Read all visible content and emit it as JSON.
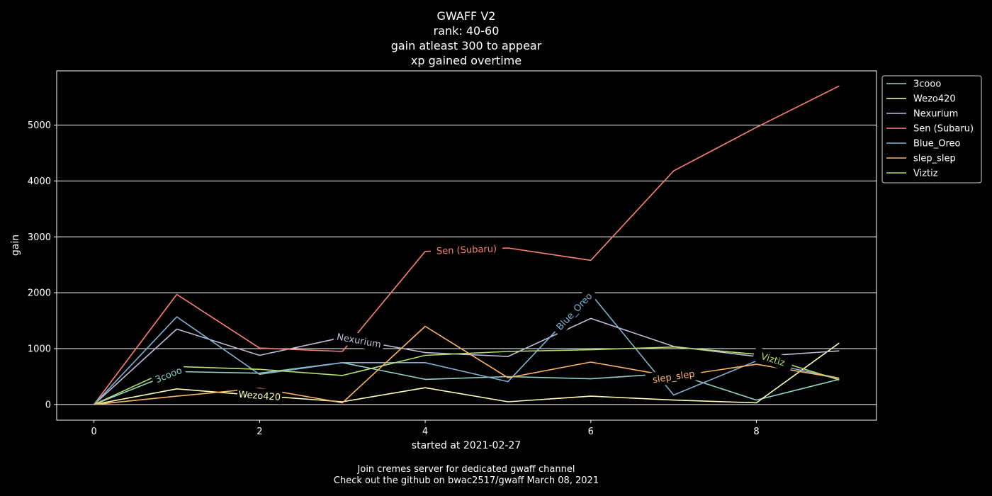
{
  "chart_data": {
    "type": "line",
    "title_lines": [
      "GWAFF V2",
      "rank: 40-60",
      "gain atleast 300 to appear",
      "xp gained overtime"
    ],
    "xlabel": "started at 2021-02-27",
    "ylabel": "gain",
    "footer_lines": [
      "Join cremes server for dedicated gwaff channel",
      "Check out the github on bwac2517/gwaff March 08, 2021"
    ],
    "xlim": [
      -0.45,
      9.45
    ],
    "ylim": [
      -280,
      5970
    ],
    "xticks": [
      0,
      2,
      4,
      6,
      8
    ],
    "xtick_labels": [
      "0",
      "2",
      "4",
      "6",
      "8"
    ],
    "yticks": [
      0,
      1000,
      2000,
      3000,
      4000,
      5000
    ],
    "ytick_labels": [
      "0",
      "1000",
      "2000",
      "3000",
      "4000",
      "5000"
    ],
    "grid": "horizontal",
    "legend_position": "outside-upper-right",
    "x": [
      0,
      1,
      2,
      3,
      4,
      5,
      6,
      7,
      8,
      9
    ],
    "series": [
      {
        "name": "3cooo",
        "color": "#8dd3c7",
        "values": [
          0,
          590,
          560,
          750,
          450,
          500,
          460,
          560,
          80,
          450
        ],
        "label_at": 0.9
      },
      {
        "name": "Wezo420",
        "color": "#feffb3",
        "values": [
          0,
          280,
          160,
          50,
          300,
          50,
          150,
          80,
          30,
          1100
        ],
        "label_at": 2.0
      },
      {
        "name": "Nexurium",
        "color": "#bfbbd9",
        "values": [
          0,
          1350,
          880,
          1200,
          930,
          860,
          1540,
          1040,
          860,
          960
        ],
        "label_at": 3.2
      },
      {
        "name": "Sen (Subaru)",
        "color": "#fa8174",
        "values": [
          0,
          1970,
          1010,
          950,
          2740,
          2800,
          2580,
          4180,
          4960,
          5700
        ],
        "label_at": 4.5
      },
      {
        "name": "Blue_Oreo",
        "color": "#81b1d2",
        "values": [
          0,
          1570,
          540,
          750,
          750,
          410,
          1980,
          170,
          780,
          470
        ],
        "label_at": 5.8
      },
      {
        "name": "slep_slep",
        "color": "#fdb462",
        "values": [
          0,
          150,
          290,
          30,
          1400,
          480,
          760,
          500,
          720,
          470
        ],
        "label_at": 7.0
      },
      {
        "name": "Viztiz",
        "color": "#b3de69",
        "values": [
          0,
          680,
          630,
          520,
          880,
          950,
          980,
          1030,
          900,
          440
        ],
        "label_at": 8.2
      }
    ]
  }
}
